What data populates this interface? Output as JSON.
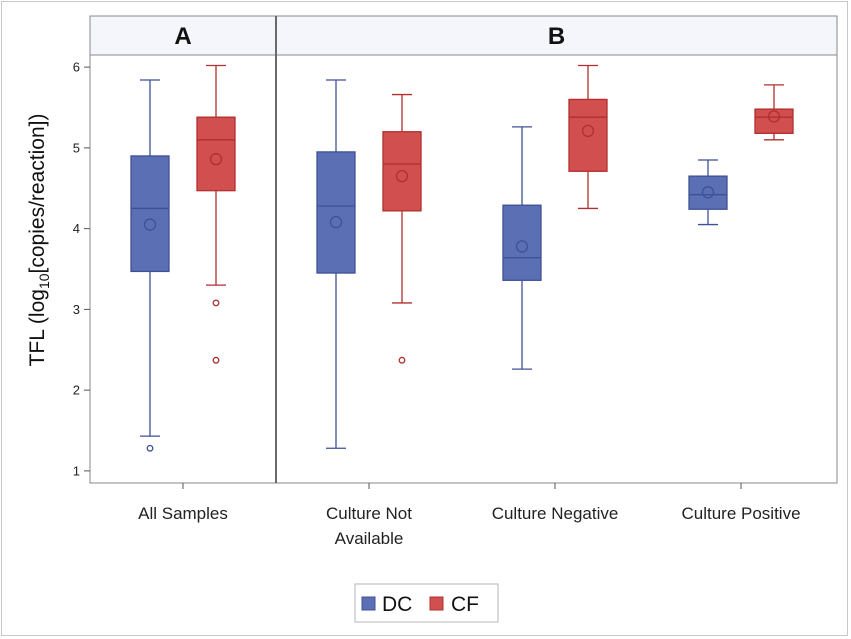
{
  "chart_data": {
    "type": "box",
    "ylabel": {
      "prefix": "TFL  (log",
      "sub": "10",
      "suffix": "[copies/reaction])"
    },
    "ylim": [
      0.85,
      6.15
    ],
    "yticks": [
      1,
      2,
      3,
      4,
      5,
      6
    ],
    "panels": [
      {
        "label": "A",
        "categories": [
          "All Samples"
        ]
      },
      {
        "label": "B",
        "categories": [
          "Culture Not\nAvailable",
          "Culture Negative",
          "Culture Positive"
        ]
      }
    ],
    "series": [
      {
        "name": "DC",
        "color": "#5b6fb4",
        "edge": "#3f5196"
      },
      {
        "name": "CF",
        "color": "#d14f4f",
        "edge": "#b22f2f"
      }
    ],
    "boxes": [
      {
        "category": "All Samples",
        "series": "DC",
        "whisker_low": 1.43,
        "q1": 3.47,
        "median": 4.25,
        "q3": 4.9,
        "whisker_high": 5.84,
        "mean": 4.05,
        "outliers": [
          1.28
        ]
      },
      {
        "category": "All Samples",
        "series": "CF",
        "whisker_low": 3.3,
        "q1": 4.47,
        "median": 5.1,
        "q3": 5.38,
        "whisker_high": 6.02,
        "mean": 4.86,
        "outliers": [
          3.08,
          2.37
        ]
      },
      {
        "category": "Culture Not\nAvailable",
        "series": "DC",
        "whisker_low": 1.28,
        "q1": 3.45,
        "median": 4.28,
        "q3": 4.95,
        "whisker_high": 5.84,
        "mean": 4.08,
        "outliers": []
      },
      {
        "category": "Culture Not\nAvailable",
        "series": "CF",
        "whisker_low": 3.08,
        "q1": 4.22,
        "median": 4.8,
        "q3": 5.2,
        "whisker_high": 5.66,
        "mean": 4.65,
        "outliers": [
          2.37
        ]
      },
      {
        "category": "Culture Negative",
        "series": "DC",
        "whisker_low": 2.26,
        "q1": 3.36,
        "median": 3.64,
        "q3": 4.29,
        "whisker_high": 5.26,
        "mean": 3.78,
        "outliers": []
      },
      {
        "category": "Culture Negative",
        "series": "CF",
        "whisker_low": 4.25,
        "q1": 4.71,
        "median": 5.38,
        "q3": 5.6,
        "whisker_high": 6.02,
        "mean": 5.21,
        "outliers": []
      },
      {
        "category": "Culture Positive",
        "series": "DC",
        "whisker_low": 4.05,
        "q1": 4.24,
        "median": 4.42,
        "q3": 4.65,
        "whisker_high": 4.85,
        "mean": 4.45,
        "outliers": []
      },
      {
        "category": "Culture Positive",
        "series": "CF",
        "whisker_low": 5.1,
        "q1": 5.18,
        "median": 5.38,
        "q3": 5.48,
        "whisker_high": 5.78,
        "mean": 5.39,
        "outliers": []
      }
    ],
    "legend": {
      "position": "bottom-center",
      "entries": [
        "DC",
        "CF"
      ]
    },
    "grid": false
  }
}
